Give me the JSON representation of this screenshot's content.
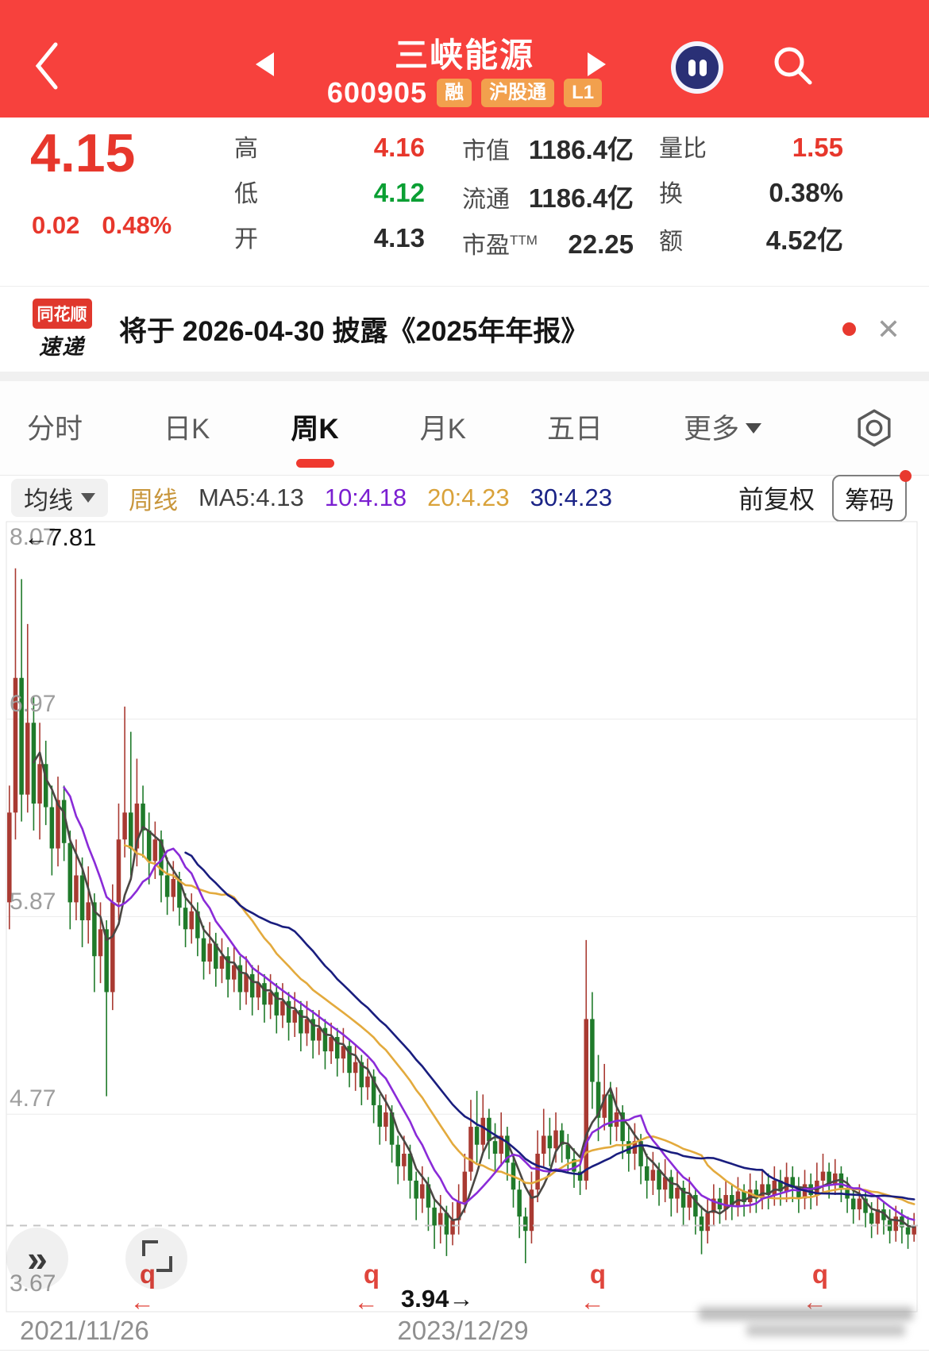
{
  "header": {
    "title": "三峡能源",
    "code": "600905",
    "badges": [
      "融",
      "沪股通",
      "L1"
    ]
  },
  "quote": {
    "price": "4.15",
    "change": "0.02",
    "change_pct": "0.48%",
    "high_label": "高",
    "high": "4.16",
    "low_label": "低",
    "low": "4.12",
    "open_label": "开",
    "open": "4.13",
    "mktcap_label": "市值",
    "mktcap": "1186.4亿",
    "float_label": "流通",
    "float": "1186.4亿",
    "pe_label": "市盈",
    "pe_sup": "TTM",
    "pe": "22.25",
    "volratio_label": "量比",
    "volratio": "1.55",
    "turnover_label": "换",
    "turnover": "0.38%",
    "amount_label": "额",
    "amount": "4.52亿"
  },
  "banner": {
    "logo_top": "同花顺",
    "logo_bottom": "速递",
    "text": "将于 2026-04-30 披露《2025年年报》",
    "close_glyph": "✕"
  },
  "tabs": {
    "items": [
      "分时",
      "日K",
      "周K",
      "月K",
      "五日",
      "更多"
    ],
    "active_index": 2
  },
  "indicator": {
    "ma_selector": "均线",
    "period": "周线",
    "ma5": "MA5:4.13",
    "ma10": "10:4.18",
    "ma20": "20:4.23",
    "ma30": "30:4.23",
    "adjust": "前复权",
    "chips_btn": "筹码"
  },
  "colors": {
    "header_red": "#f7413d",
    "up_red": "#e7372c",
    "down_green": "#0a9f33",
    "candle_up": "#a93a32",
    "candle_down": "#1f7a2a",
    "marker_red": "#e0453c"
  },
  "chart_data": {
    "type": "candlestick",
    "period": "weekly",
    "title": "三峡能源 600905 周K 前复权",
    "y_labels": [
      "8.07",
      "6.97",
      "5.87",
      "4.77",
      "3.67"
    ],
    "y_values": [
      8.07,
      6.97,
      5.87,
      4.77,
      3.67
    ],
    "x_labels": [
      "2021/11/26",
      "2023/12/29"
    ],
    "dashed_price": 4.15,
    "high_annotation": "←7.81",
    "low_annotation": "3.94→",
    "event_marker": "q",
    "event_marker_arrow": "←",
    "event_marker_xs": [
      186,
      468,
      753,
      1033
    ],
    "ma_periods": [
      5,
      10,
      20,
      30
    ],
    "ma_colors": {
      "ma5": "#4a4743",
      "ma10": "#8a2bd8",
      "ma20": "#e3aa3d",
      "ma30": "#191d7e"
    },
    "candles": [
      [
        5.95,
        6.6,
        5.8,
        6.45
      ],
      [
        6.45,
        7.81,
        6.3,
        7.2
      ],
      [
        7.2,
        7.75,
        6.4,
        6.55
      ],
      [
        6.55,
        7.5,
        6.45,
        6.95
      ],
      [
        6.95,
        7.1,
        6.35,
        6.5
      ],
      [
        6.5,
        6.95,
        6.3,
        6.72
      ],
      [
        6.72,
        6.85,
        6.38,
        6.48
      ],
      [
        6.48,
        6.6,
        6.1,
        6.25
      ],
      [
        6.25,
        6.65,
        6.15,
        6.52
      ],
      [
        6.52,
        6.6,
        6.18,
        6.28
      ],
      [
        6.28,
        6.35,
        5.8,
        5.95
      ],
      [
        5.95,
        6.3,
        5.85,
        6.1
      ],
      [
        6.1,
        6.2,
        5.7,
        5.85
      ],
      [
        5.85,
        6.15,
        5.72,
        5.95
      ],
      [
        5.95,
        6.0,
        5.45,
        5.65
      ],
      [
        5.65,
        5.95,
        5.5,
        5.8
      ],
      [
        5.8,
        5.85,
        4.87,
        5.45
      ],
      [
        5.45,
        6.05,
        5.35,
        5.95
      ],
      [
        5.95,
        6.5,
        5.85,
        6.3
      ],
      [
        6.3,
        7.04,
        6.2,
        6.45
      ],
      [
        6.45,
        6.9,
        6.1,
        6.25
      ],
      [
        6.25,
        6.75,
        6.15,
        6.5
      ],
      [
        6.5,
        6.6,
        6.2,
        6.35
      ],
      [
        6.35,
        6.45,
        6.05,
        6.18
      ],
      [
        6.18,
        6.4,
        6.08,
        6.3
      ],
      [
        6.3,
        6.35,
        5.95,
        6.1
      ],
      [
        6.1,
        6.2,
        5.88,
        5.98
      ],
      [
        5.98,
        6.18,
        5.9,
        6.08
      ],
      [
        6.08,
        6.12,
        5.82,
        5.92
      ],
      [
        5.92,
        6.0,
        5.7,
        5.8
      ],
      [
        5.8,
        6.0,
        5.72,
        5.9
      ],
      [
        5.9,
        5.95,
        5.65,
        5.75
      ],
      [
        5.75,
        5.82,
        5.52,
        5.62
      ],
      [
        5.62,
        5.84,
        5.55,
        5.72
      ],
      [
        5.72,
        5.78,
        5.48,
        5.58
      ],
      [
        5.58,
        5.75,
        5.5,
        5.65
      ],
      [
        5.65,
        5.7,
        5.42,
        5.52
      ],
      [
        5.52,
        5.7,
        5.45,
        5.6
      ],
      [
        5.6,
        5.65,
        5.35,
        5.45
      ],
      [
        5.45,
        5.65,
        5.38,
        5.55
      ],
      [
        5.55,
        5.6,
        5.32,
        5.42
      ],
      [
        5.42,
        5.6,
        5.35,
        5.5
      ],
      [
        5.5,
        5.55,
        5.28,
        5.38
      ],
      [
        5.38,
        5.55,
        5.3,
        5.45
      ],
      [
        5.45,
        5.5,
        5.22,
        5.32
      ],
      [
        5.32,
        5.5,
        5.25,
        5.4
      ],
      [
        5.4,
        5.45,
        5.18,
        5.28
      ],
      [
        5.28,
        5.45,
        5.2,
        5.35
      ],
      [
        5.35,
        5.4,
        5.12,
        5.22
      ],
      [
        5.22,
        5.4,
        5.15,
        5.3
      ],
      [
        5.3,
        5.35,
        5.08,
        5.18
      ],
      [
        5.18,
        5.35,
        5.1,
        5.25
      ],
      [
        5.25,
        5.3,
        5.02,
        5.12
      ],
      [
        5.12,
        5.28,
        5.05,
        5.2
      ],
      [
        5.2,
        5.25,
        4.98,
        5.08
      ],
      [
        5.08,
        5.25,
        5.0,
        5.15
      ],
      [
        5.15,
        5.18,
        4.92,
        5.0
      ],
      [
        5.0,
        5.15,
        4.9,
        5.06
      ],
      [
        5.06,
        5.1,
        4.82,
        4.92
      ],
      [
        4.92,
        5.08,
        4.85,
        4.98
      ],
      [
        4.98,
        5.02,
        4.72,
        4.82
      ],
      [
        4.82,
        4.88,
        4.6,
        4.7
      ],
      [
        4.7,
        4.88,
        4.62,
        4.78
      ],
      [
        4.78,
        4.82,
        4.5,
        4.6
      ],
      [
        4.6,
        4.65,
        4.38,
        4.48
      ],
      [
        4.48,
        4.65,
        4.4,
        4.55
      ],
      [
        4.55,
        4.6,
        4.3,
        4.4
      ],
      [
        4.4,
        4.45,
        4.18,
        4.3
      ],
      [
        4.3,
        4.48,
        4.22,
        4.38
      ],
      [
        4.38,
        4.42,
        4.12,
        4.25
      ],
      [
        4.25,
        4.3,
        4.02,
        4.15
      ],
      [
        4.15,
        4.32,
        4.05,
        4.22
      ],
      [
        4.22,
        4.26,
        3.98,
        4.1
      ],
      [
        4.1,
        4.28,
        4.04,
        4.18
      ],
      [
        4.18,
        4.38,
        4.1,
        4.28
      ],
      [
        4.28,
        4.55,
        4.22,
        4.45
      ],
      [
        4.45,
        4.85,
        4.4,
        4.7
      ],
      [
        4.7,
        4.9,
        4.5,
        4.6
      ],
      [
        4.6,
        4.88,
        4.55,
        4.75
      ],
      [
        4.75,
        4.8,
        4.52,
        4.62
      ],
      [
        4.62,
        4.72,
        4.45,
        4.55
      ],
      [
        4.55,
        4.78,
        4.48,
        4.65
      ],
      [
        4.65,
        4.7,
        4.4,
        4.5
      ],
      [
        4.5,
        4.55,
        4.25,
        4.35
      ],
      [
        4.35,
        4.4,
        4.08,
        4.2
      ],
      [
        4.2,
        4.25,
        3.94,
        4.12
      ],
      [
        4.12,
        4.45,
        4.05,
        4.35
      ],
      [
        4.35,
        4.68,
        4.28,
        4.55
      ],
      [
        4.55,
        4.8,
        4.48,
        4.65
      ],
      [
        4.65,
        4.75,
        4.48,
        4.58
      ],
      [
        4.58,
        4.78,
        4.5,
        4.68
      ],
      [
        4.68,
        4.72,
        4.5,
        4.6
      ],
      [
        4.6,
        4.66,
        4.44,
        4.52
      ],
      [
        4.52,
        4.58,
        4.36,
        4.45
      ],
      [
        4.45,
        4.52,
        4.32,
        4.4
      ],
      [
        4.4,
        5.74,
        4.35,
        5.3
      ],
      [
        5.3,
        5.45,
        4.8,
        4.95
      ],
      [
        4.95,
        5.1,
        4.62,
        4.75
      ],
      [
        4.75,
        5.05,
        4.68,
        4.88
      ],
      [
        4.88,
        4.95,
        4.6,
        4.7
      ],
      [
        4.7,
        4.92,
        4.62,
        4.78
      ],
      [
        4.78,
        4.82,
        4.52,
        4.62
      ],
      [
        4.62,
        4.7,
        4.45,
        4.55
      ],
      [
        4.55,
        4.72,
        4.46,
        4.62
      ],
      [
        4.62,
        4.66,
        4.38,
        4.48
      ],
      [
        4.48,
        4.55,
        4.3,
        4.4
      ],
      [
        4.4,
        4.56,
        4.32,
        4.46
      ],
      [
        4.46,
        4.5,
        4.26,
        4.35
      ],
      [
        4.35,
        4.52,
        4.28,
        4.42
      ],
      [
        4.42,
        4.46,
        4.2,
        4.3
      ],
      [
        4.3,
        4.46,
        4.22,
        4.36
      ],
      [
        4.36,
        4.4,
        4.15,
        4.25
      ],
      [
        4.25,
        4.42,
        4.18,
        4.32
      ],
      [
        4.32,
        4.36,
        4.1,
        4.2
      ],
      [
        4.2,
        4.26,
        3.99,
        4.12
      ],
      [
        4.12,
        4.3,
        4.05,
        4.22
      ],
      [
        4.22,
        4.38,
        4.15,
        4.3
      ],
      [
        4.3,
        4.36,
        4.16,
        4.24
      ],
      [
        4.24,
        4.4,
        4.18,
        4.32
      ],
      [
        4.32,
        4.38,
        4.18,
        4.26
      ],
      [
        4.26,
        4.42,
        4.2,
        4.34
      ],
      [
        4.34,
        4.38,
        4.2,
        4.28
      ],
      [
        4.28,
        4.44,
        4.22,
        4.35
      ],
      [
        4.35,
        4.4,
        4.22,
        4.3
      ],
      [
        4.3,
        4.46,
        4.24,
        4.38
      ],
      [
        4.38,
        4.44,
        4.24,
        4.32
      ],
      [
        4.32,
        4.48,
        4.26,
        4.4
      ],
      [
        4.4,
        4.46,
        4.26,
        4.34
      ],
      [
        4.34,
        4.5,
        4.28,
        4.42
      ],
      [
        4.42,
        4.48,
        4.28,
        4.36
      ],
      [
        4.36,
        4.42,
        4.22,
        4.3
      ],
      [
        4.3,
        4.46,
        4.24,
        4.38
      ],
      [
        4.38,
        4.44,
        4.24,
        4.32
      ],
      [
        4.32,
        4.5,
        4.26,
        4.4
      ],
      [
        4.4,
        4.55,
        4.34,
        4.45
      ],
      [
        4.45,
        4.5,
        4.3,
        4.38
      ],
      [
        4.38,
        4.52,
        4.32,
        4.44
      ],
      [
        4.44,
        4.48,
        4.28,
        4.36
      ],
      [
        4.36,
        4.42,
        4.22,
        4.3
      ],
      [
        4.3,
        4.36,
        4.16,
        4.24
      ],
      [
        4.24,
        4.38,
        4.18,
        4.3
      ],
      [
        4.3,
        4.34,
        4.14,
        4.22
      ],
      [
        4.22,
        4.28,
        4.08,
        4.16
      ],
      [
        4.16,
        4.32,
        4.1,
        4.24
      ],
      [
        4.24,
        4.28,
        4.1,
        4.18
      ],
      [
        4.18,
        4.24,
        4.05,
        4.12
      ],
      [
        4.12,
        4.26,
        4.06,
        4.2
      ],
      [
        4.2,
        4.24,
        4.05,
        4.14
      ],
      [
        4.14,
        4.2,
        4.02,
        4.1
      ],
      [
        4.1,
        4.22,
        4.06,
        4.15
      ]
    ]
  }
}
